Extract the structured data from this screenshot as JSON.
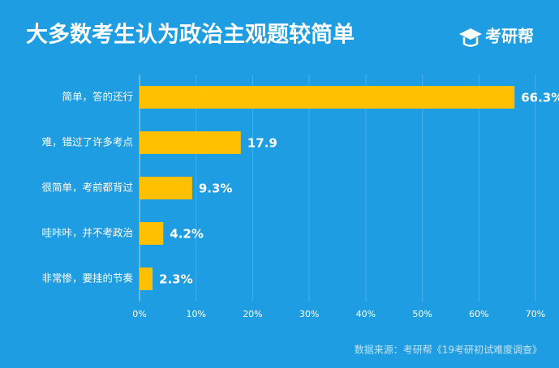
{
  "chart_data": {
    "type": "bar",
    "orientation": "horizontal",
    "title": "大多数考生认为政治主观题较简单",
    "brand": "考研帮",
    "source": "数据来源：考研帮《19考研初试难度调查》",
    "categories": [
      "简单，答的还行",
      "难，错过了许多考点",
      "很简单，考前都背过",
      "哇咔咔，并不考政治",
      "非常惨，要挂的节奏"
    ],
    "values": [
      66.3,
      17.9,
      9.3,
      4.2,
      2.3
    ],
    "value_labels": [
      "66.3%",
      "17.9",
      "9.3%",
      "4.2%",
      "2.3%"
    ],
    "color": "#ffc000",
    "xlim": [
      0,
      70
    ],
    "xticks": [
      {
        "value": 0,
        "label": "0%"
      },
      {
        "value": 10,
        "label": "10%"
      },
      {
        "value": 20,
        "label": "20%"
      },
      {
        "value": 30,
        "label": "30%"
      },
      {
        "value": 40,
        "label": "40%"
      },
      {
        "value": 50,
        "label": "50%"
      },
      {
        "value": 60,
        "label": "60%"
      },
      {
        "value": 70,
        "label": "70%"
      }
    ],
    "grid": true
  }
}
